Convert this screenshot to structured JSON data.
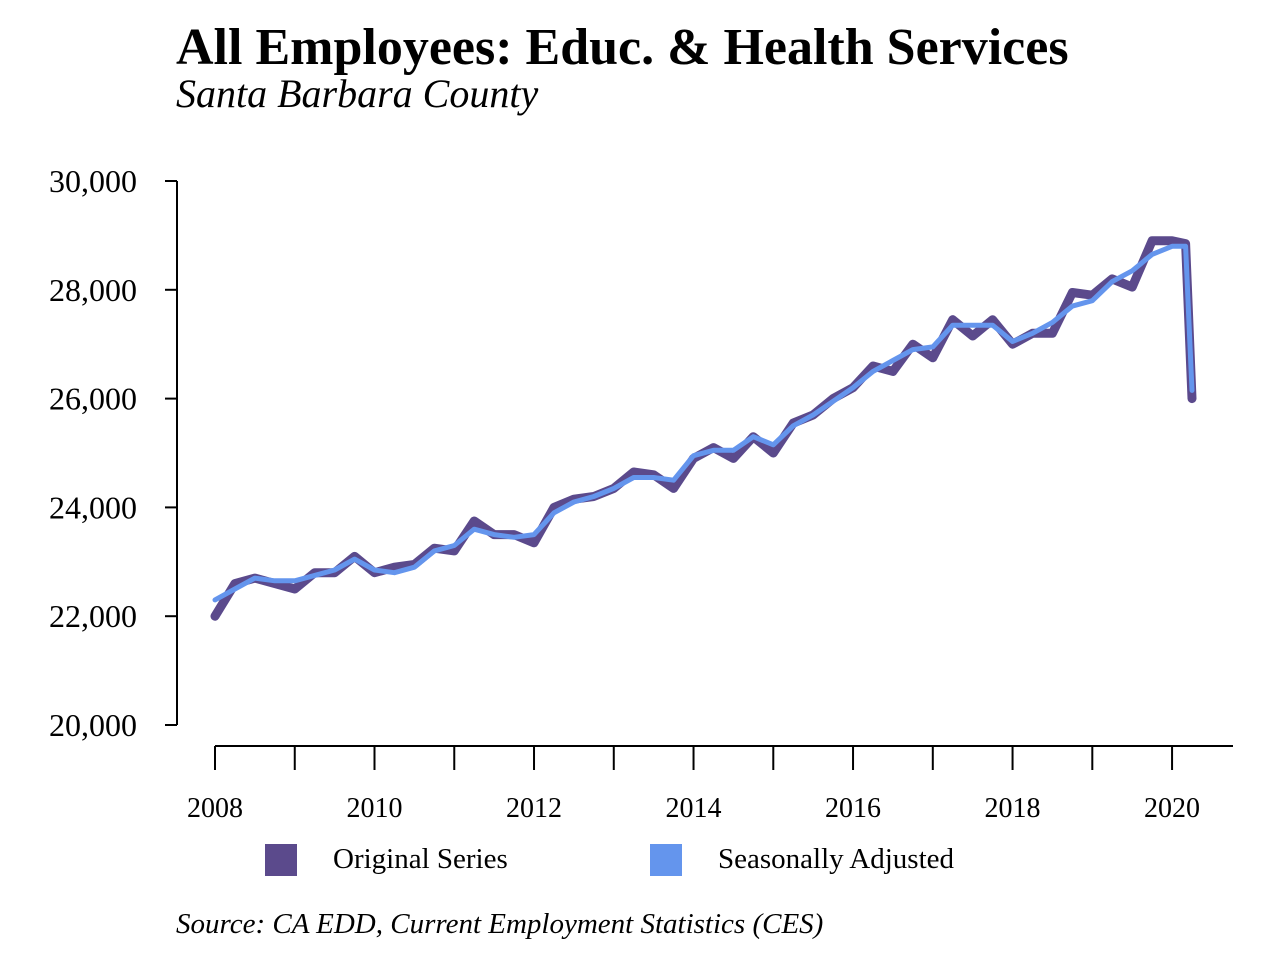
{
  "title": "All Employees: Educ. & Health Services",
  "subtitle": "Santa Barbara County",
  "source": "Source: CA EDD, Current Employment Statistics (CES)",
  "colors": {
    "original": "#5b4a8c",
    "seasonal": "#6495ed"
  },
  "legend": [
    {
      "label": "Original Series",
      "color": "#5b4a8c"
    },
    {
      "label": "Seasonally Adjusted",
      "color": "#6495ed"
    }
  ],
  "chart_data": {
    "type": "line",
    "title": "All Employees: Educ. & Health Services",
    "subtitle": "Santa Barbara County",
    "xlabel": "",
    "ylabel": "",
    "xlim": [
      2008,
      2020.25
    ],
    "ylim": [
      20000,
      30000
    ],
    "grid": false,
    "legend_position": "bottom",
    "x_ticks": [
      2008,
      2009,
      2010,
      2011,
      2012,
      2013,
      2014,
      2015,
      2016,
      2017,
      2018,
      2019,
      2020
    ],
    "x_tick_labels": [
      "2008",
      "",
      "2010",
      "",
      "2012",
      "",
      "2014",
      "",
      "2016",
      "",
      "2018",
      "",
      "2020"
    ],
    "y_ticks": [
      20000,
      22000,
      24000,
      26000,
      28000,
      30000
    ],
    "y_tick_labels": [
      "20,000",
      "22,000",
      "24,000",
      "26,000",
      "28,000",
      "30,000"
    ],
    "series": [
      {
        "name": "Original Series",
        "color": "#5b4a8c",
        "points": [
          [
            2008.0,
            22000
          ],
          [
            2008.25,
            22600
          ],
          [
            2008.5,
            22700
          ],
          [
            2008.75,
            22600
          ],
          [
            2009.0,
            22500
          ],
          [
            2009.25,
            22800
          ],
          [
            2009.5,
            22800
          ],
          [
            2009.75,
            23100
          ],
          [
            2010.0,
            22800
          ],
          [
            2010.25,
            22900
          ],
          [
            2010.5,
            22950
          ],
          [
            2010.75,
            23250
          ],
          [
            2011.0,
            23200
          ],
          [
            2011.25,
            23750
          ],
          [
            2011.5,
            23500
          ],
          [
            2011.75,
            23500
          ],
          [
            2012.0,
            23350
          ],
          [
            2012.25,
            24000
          ],
          [
            2012.5,
            24150
          ],
          [
            2012.75,
            24200
          ],
          [
            2013.0,
            24350
          ],
          [
            2013.25,
            24650
          ],
          [
            2013.5,
            24600
          ],
          [
            2013.75,
            24350
          ],
          [
            2014.0,
            24900
          ],
          [
            2014.25,
            25100
          ],
          [
            2014.5,
            24900
          ],
          [
            2014.75,
            25300
          ],
          [
            2015.0,
            25000
          ],
          [
            2015.25,
            25550
          ],
          [
            2015.5,
            25700
          ],
          [
            2015.75,
            26000
          ],
          [
            2016.0,
            26200
          ],
          [
            2016.25,
            26600
          ],
          [
            2016.5,
            26500
          ],
          [
            2016.75,
            27000
          ],
          [
            2017.0,
            26750
          ],
          [
            2017.25,
            27450
          ],
          [
            2017.5,
            27150
          ],
          [
            2017.75,
            27450
          ],
          [
            2018.0,
            27000
          ],
          [
            2018.25,
            27200
          ],
          [
            2018.5,
            27200
          ],
          [
            2018.75,
            27950
          ],
          [
            2019.0,
            27900
          ],
          [
            2019.25,
            28200
          ],
          [
            2019.5,
            28050
          ],
          [
            2019.75,
            28900
          ],
          [
            2020.0,
            28900
          ],
          [
            2020.17,
            28850
          ],
          [
            2020.25,
            26000
          ]
        ]
      },
      {
        "name": "Seasonally Adjusted",
        "color": "#6495ed",
        "points": [
          [
            2008.0,
            22300
          ],
          [
            2008.25,
            22500
          ],
          [
            2008.5,
            22700
          ],
          [
            2008.75,
            22650
          ],
          [
            2009.0,
            22650
          ],
          [
            2009.25,
            22750
          ],
          [
            2009.5,
            22850
          ],
          [
            2009.75,
            23050
          ],
          [
            2010.0,
            22850
          ],
          [
            2010.25,
            22800
          ],
          [
            2010.5,
            22900
          ],
          [
            2010.75,
            23200
          ],
          [
            2011.0,
            23300
          ],
          [
            2011.25,
            23600
          ],
          [
            2011.5,
            23500
          ],
          [
            2011.75,
            23450
          ],
          [
            2012.0,
            23500
          ],
          [
            2012.25,
            23900
          ],
          [
            2012.5,
            24100
          ],
          [
            2012.75,
            24200
          ],
          [
            2013.0,
            24350
          ],
          [
            2013.25,
            24550
          ],
          [
            2013.5,
            24550
          ],
          [
            2013.75,
            24500
          ],
          [
            2014.0,
            24950
          ],
          [
            2014.25,
            25050
          ],
          [
            2014.5,
            25050
          ],
          [
            2014.75,
            25300
          ],
          [
            2015.0,
            25150
          ],
          [
            2015.25,
            25500
          ],
          [
            2015.5,
            25700
          ],
          [
            2015.75,
            25950
          ],
          [
            2016.0,
            26200
          ],
          [
            2016.25,
            26500
          ],
          [
            2016.5,
            26700
          ],
          [
            2016.75,
            26900
          ],
          [
            2017.0,
            26950
          ],
          [
            2017.25,
            27350
          ],
          [
            2017.5,
            27350
          ],
          [
            2017.75,
            27350
          ],
          [
            2018.0,
            27050
          ],
          [
            2018.25,
            27200
          ],
          [
            2018.5,
            27400
          ],
          [
            2018.75,
            27700
          ],
          [
            2019.0,
            27800
          ],
          [
            2019.25,
            28150
          ],
          [
            2019.5,
            28350
          ],
          [
            2019.75,
            28650
          ],
          [
            2020.0,
            28800
          ],
          [
            2020.17,
            28800
          ],
          [
            2020.25,
            26150
          ]
        ]
      }
    ]
  }
}
